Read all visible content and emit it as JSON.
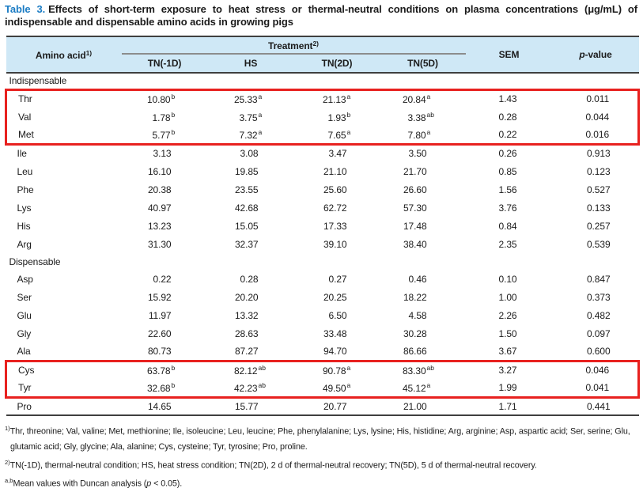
{
  "title": {
    "label": "Table 3.",
    "text": "Effects of short-term exposure to heat stress or thermal-neutral conditions on plasma concentrations (μg/mL) of indispensable and dispensable amino acids in growing pigs"
  },
  "colors": {
    "header_bg": "#cfe8f6",
    "accent_blue": "#1b7cc4",
    "highlight_red": "#e8211f"
  },
  "table": {
    "header": {
      "amino_acid": "Amino acid",
      "amino_acid_sup": "1)",
      "treatment": "Treatment",
      "treatment_sup": "2)",
      "treatments": [
        "TN(-1D)",
        "HS",
        "TN(2D)",
        "TN(5D)"
      ],
      "sem": "SEM",
      "p_italic": "p",
      "p_rest": "-value"
    },
    "sections": [
      {
        "label": "Indispensable",
        "rows": [
          {
            "name": "Thr",
            "hl": "top",
            "cells": [
              {
                "v": "10.80",
                "s": "b"
              },
              {
                "v": "25.33",
                "s": "a"
              },
              {
                "v": "21.13",
                "s": "a"
              },
              {
                "v": "20.84",
                "s": "a"
              },
              {
                "v": "1.43"
              },
              {
                "v": "0.011"
              }
            ]
          },
          {
            "name": "Val",
            "hl": "mid",
            "cells": [
              {
                "v": "1.78",
                "s": "b"
              },
              {
                "v": "3.75",
                "s": "a"
              },
              {
                "v": "1.93",
                "s": "b"
              },
              {
                "v": "3.38",
                "s": "ab"
              },
              {
                "v": "0.28"
              },
              {
                "v": "0.044"
              }
            ]
          },
          {
            "name": "Met",
            "hl": "bottom",
            "cells": [
              {
                "v": "5.77",
                "s": "b"
              },
              {
                "v": "7.32",
                "s": "a"
              },
              {
                "v": "7.65",
                "s": "a"
              },
              {
                "v": "7.80",
                "s": "a"
              },
              {
                "v": "0.22"
              },
              {
                "v": "0.016"
              }
            ]
          },
          {
            "name": "Ile",
            "cells": [
              {
                "v": "3.13"
              },
              {
                "v": "3.08"
              },
              {
                "v": "3.47"
              },
              {
                "v": "3.50"
              },
              {
                "v": "0.26"
              },
              {
                "v": "0.913"
              }
            ]
          },
          {
            "name": "Leu",
            "cells": [
              {
                "v": "16.10"
              },
              {
                "v": "19.85"
              },
              {
                "v": "21.10"
              },
              {
                "v": "21.70"
              },
              {
                "v": "0.85"
              },
              {
                "v": "0.123"
              }
            ]
          },
          {
            "name": "Phe",
            "cells": [
              {
                "v": "20.38"
              },
              {
                "v": "23.55"
              },
              {
                "v": "25.60"
              },
              {
                "v": "26.60"
              },
              {
                "v": "1.56"
              },
              {
                "v": "0.527"
              }
            ]
          },
          {
            "name": "Lys",
            "cells": [
              {
                "v": "40.97"
              },
              {
                "v": "42.68"
              },
              {
                "v": "62.72"
              },
              {
                "v": "57.30"
              },
              {
                "v": "3.76"
              },
              {
                "v": "0.133"
              }
            ]
          },
          {
            "name": "His",
            "cells": [
              {
                "v": "13.23"
              },
              {
                "v": "15.05"
              },
              {
                "v": "17.33"
              },
              {
                "v": "17.48"
              },
              {
                "v": "0.84"
              },
              {
                "v": "0.257"
              }
            ]
          },
          {
            "name": "Arg",
            "cells": [
              {
                "v": "31.30"
              },
              {
                "v": "32.37"
              },
              {
                "v": "39.10"
              },
              {
                "v": "38.40"
              },
              {
                "v": "2.35"
              },
              {
                "v": "0.539"
              }
            ]
          }
        ]
      },
      {
        "label": "Dispensable",
        "rows": [
          {
            "name": "Asp",
            "cells": [
              {
                "v": "0.22"
              },
              {
                "v": "0.28"
              },
              {
                "v": "0.27"
              },
              {
                "v": "0.46"
              },
              {
                "v": "0.10"
              },
              {
                "v": "0.847"
              }
            ]
          },
          {
            "name": "Ser",
            "cells": [
              {
                "v": "15.92"
              },
              {
                "v": "20.20"
              },
              {
                "v": "20.25"
              },
              {
                "v": "18.22"
              },
              {
                "v": "1.00"
              },
              {
                "v": "0.373"
              }
            ]
          },
          {
            "name": "Glu",
            "cells": [
              {
                "v": "11.97"
              },
              {
                "v": "13.32"
              },
              {
                "v": "6.50"
              },
              {
                "v": "4.58"
              },
              {
                "v": "2.26"
              },
              {
                "v": "0.482"
              }
            ]
          },
          {
            "name": "Gly",
            "cells": [
              {
                "v": "22.60"
              },
              {
                "v": "28.63"
              },
              {
                "v": "33.48"
              },
              {
                "v": "30.28"
              },
              {
                "v": "1.50"
              },
              {
                "v": "0.097"
              }
            ]
          },
          {
            "name": "Ala",
            "cells": [
              {
                "v": "80.73"
              },
              {
                "v": "87.27"
              },
              {
                "v": "94.70"
              },
              {
                "v": "86.66"
              },
              {
                "v": "3.67"
              },
              {
                "v": "0.600"
              }
            ]
          },
          {
            "name": "Cys",
            "hl": "top",
            "cells": [
              {
                "v": "63.78",
                "s": "b"
              },
              {
                "v": "82.12",
                "s": "ab"
              },
              {
                "v": "90.78",
                "s": "a"
              },
              {
                "v": "83.30",
                "s": "ab"
              },
              {
                "v": "3.27"
              },
              {
                "v": "0.046"
              }
            ]
          },
          {
            "name": "Tyr",
            "hl": "bottom",
            "cells": [
              {
                "v": "32.68",
                "s": "b"
              },
              {
                "v": "42.23",
                "s": "ab"
              },
              {
                "v": "49.50",
                "s": "a"
              },
              {
                "v": "45.12",
                "s": "a"
              },
              {
                "v": "1.99"
              },
              {
                "v": "0.041"
              }
            ]
          },
          {
            "name": "Pro",
            "cells": [
              {
                "v": "14.65"
              },
              {
                "v": "15.77"
              },
              {
                "v": "20.77"
              },
              {
                "v": "21.00"
              },
              {
                "v": "1.71"
              },
              {
                "v": "0.441"
              }
            ]
          }
        ]
      }
    ]
  },
  "footnotes": [
    {
      "segments": [
        {
          "sup": "1)"
        },
        {
          "text": "Thr, threonine; Val, valine; Met, methionine; Ile, isoleucine; Leu, leucine; Phe, phenylalanine; Lys, lysine; His, histidine; Arg, arginine; Asp, aspartic acid; Ser, serine; Glu, glutamic acid; Gly, glycine; Ala, alanine; Cys, cysteine; Tyr, tyrosine; Pro, proline."
        }
      ]
    },
    {
      "segments": [
        {
          "sup": "2)"
        },
        {
          "text": "TN(-1D), thermal-neutral condition; HS, heat stress condition; TN(2D), 2 d of thermal-neutral recovery; TN(5D), 5 d of thermal-neutral recovery."
        }
      ]
    },
    {
      "segments": [
        {
          "sup": "a,b"
        },
        {
          "text": "Mean values with Duncan analysis ("
        },
        {
          "i": "p"
        },
        {
          "text": " < 0.05)."
        }
      ]
    }
  ]
}
